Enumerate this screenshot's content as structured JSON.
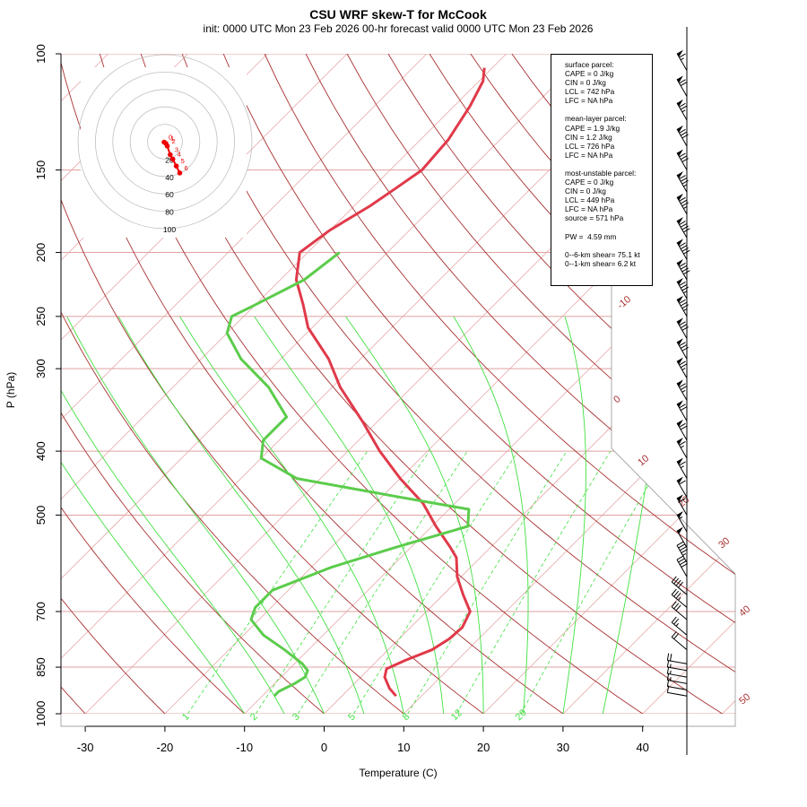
{
  "title": "CSU WRF skew-T for McCook",
  "subtitle": "init: 0000 UTC Mon 23 Feb 2026     00-hr forecast valid 0000 UTC Mon 23 Feb 2026",
  "colors": {
    "temperature": "#e03a4a",
    "dewpoint": "#5ccc4c",
    "isotherm": "#e8a8a8",
    "dry_adiabat": "#a83030",
    "moist_adiabat": "#40e040",
    "mixing_ratio": "#40e040",
    "isobar": "#e0a0a0",
    "hodograph_ring": "#c0c0c0",
    "hodograph_trace": "#ee0000"
  },
  "chart_data": {
    "type": "line",
    "title": "CSU WRF skew-T for McCook",
    "xlabel": "Temperature (C)",
    "ylabel": "P (hPa)",
    "x_ticks": [
      -30,
      -20,
      -10,
      0,
      10,
      20,
      30,
      40
    ],
    "y_ticks": [
      100,
      150,
      200,
      250,
      300,
      400,
      500,
      700,
      850,
      1000
    ],
    "y_scale": "log",
    "xlim": [
      -33,
      45
    ],
    "ylim": [
      1000,
      100
    ],
    "skew": "45 degrees",
    "dry_adiabat_labels": [
      "-10",
      "0",
      "10",
      "20",
      "30",
      "40",
      "50"
    ],
    "mixing_ratio_labels": [
      "1",
      "2",
      "3",
      "5",
      "8",
      "12",
      "20"
    ],
    "series": [
      {
        "name": "temperature",
        "pressure": [
          940,
          915,
          880,
          855,
          830,
          800,
          770,
          740,
          700,
          660,
          620,
          580,
          560,
          520,
          480,
          440,
          400,
          360,
          320,
          290,
          260,
          240,
          220,
          200,
          185,
          170,
          160,
          150,
          135,
          120,
          110,
          105
        ],
        "temperature": [
          6.8,
          5.0,
          3.0,
          2.2,
          3.5,
          5.5,
          6.3,
          6.5,
          5.5,
          2.5,
          -0.5,
          -3.0,
          -5.0,
          -9.5,
          -14.0,
          -20.0,
          -26.0,
          -32.0,
          -39.0,
          -44.0,
          -50.5,
          -54.0,
          -58.0,
          -61.0,
          -60.0,
          -58.0,
          -57.0,
          -56.0,
          -56.5,
          -58.0,
          -59.5,
          -61.0
        ]
      },
      {
        "name": "dewpoint",
        "pressure": [
          940,
          925,
          900,
          880,
          860,
          840,
          800,
          760,
          720,
          690,
          650,
          600,
          560,
          520,
          490,
          470,
          440,
          410,
          385,
          355,
          320,
          290,
          265,
          250,
          240,
          220,
          200
        ],
        "temperature": [
          -8.5,
          -8.5,
          -7.5,
          -7.0,
          -7.5,
          -9.0,
          -13.0,
          -17.5,
          -21.0,
          -22.0,
          -22.0,
          -17.5,
          -12.0,
          -5.5,
          -7.5,
          -17.5,
          -33.0,
          -40.0,
          -42.0,
          -42.0,
          -48.0,
          -55.0,
          -60.0,
          -61.5,
          -60.0,
          -57.0,
          -56.0
        ]
      }
    ],
    "wind_barbs": {
      "pressure": [
        940,
        920,
        900,
        880,
        860,
        840,
        800,
        760,
        720,
        690,
        660,
        620,
        590,
        560,
        530,
        500,
        470,
        440,
        410,
        385,
        360,
        335,
        310,
        290,
        270,
        250,
        235,
        220,
        205,
        190,
        175,
        162,
        150,
        138,
        126,
        116,
        106
      ],
      "speed_kt": [
        10,
        12,
        15,
        15,
        18,
        20,
        22,
        25,
        30,
        35,
        40,
        40,
        45,
        50,
        55,
        60,
        60,
        65,
        65,
        70,
        70,
        75,
        75,
        80,
        80,
        85,
        85,
        90,
        90,
        90,
        85,
        85,
        80,
        80,
        75,
        70,
        65
      ]
    },
    "hodograph": {
      "ring_labels": [
        "20",
        "40",
        "60",
        "80",
        "100"
      ],
      "point_labels": [
        "0",
        "1",
        "2",
        "3",
        "4",
        "5",
        "6"
      ],
      "u": [
        -0.5,
        0.5,
        1.3,
        3.0,
        4.5,
        6.5,
        8.5
      ],
      "v": [
        -0.3,
        -1.0,
        -2.5,
        -7.5,
        -10.0,
        -14.0,
        -18.0
      ]
    }
  },
  "infobox": {
    "surface": [
      "surface parcel:",
      "CAPE = 0 J/kg",
      "CIN = 0 J/kg",
      "LCL = 742 hPa",
      "LFC = NA hPa"
    ],
    "mean_layer": [
      "mean-layer parcel:",
      "CAPE = 1.9 J/kg",
      "CIN = 1.2 J/kg",
      "LCL = 726 hPa",
      "LFC = NA hPa"
    ],
    "most_unstable": [
      "most-unstable parcel:",
      "CAPE = 0 J/kg",
      "CIN = 0 J/kg",
      "LCL = 449 hPa",
      "LFC = NA hPa",
      "source = 571 hPa"
    ],
    "pw": [
      "PW =  4.59 mm"
    ],
    "shear": [
      "0--6-km shear= 75.1 kt",
      "0--1-km shear= 6.2 kt"
    ]
  }
}
